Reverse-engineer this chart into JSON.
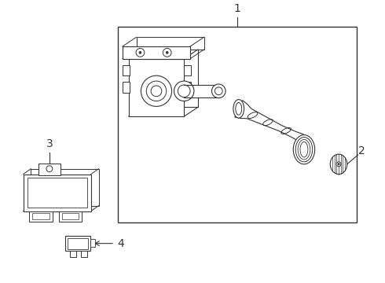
{
  "bg_color": "#ffffff",
  "line_color": "#333333",
  "fig_width": 4.9,
  "fig_height": 3.6,
  "dpi": 100,
  "label_1": "1",
  "label_2": "2",
  "label_3": "3",
  "label_4": "4"
}
